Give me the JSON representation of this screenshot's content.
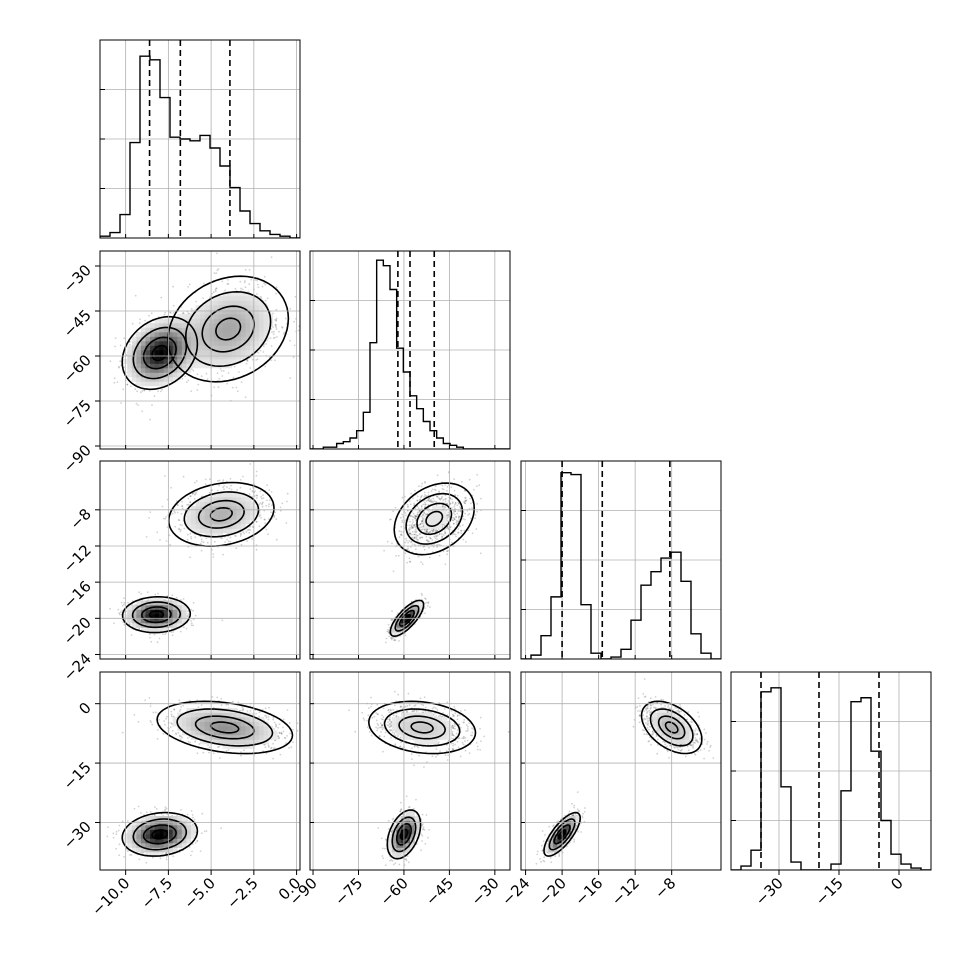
{
  "chart_data": {
    "type": "corner",
    "grid": true,
    "params": [
      {
        "range": [
          -11.5,
          0.2
        ],
        "ticks": [
          -10.0,
          -7.5,
          -5.0,
          -2.5,
          0.0
        ],
        "tick_labels": [
          "−10.0",
          "−7.5",
          "−5.0",
          "−2.5",
          "0.0"
        ],
        "quantiles": [
          -8.6,
          -6.8,
          -3.9
        ],
        "hist_edges": [
          -11.5,
          -10.915,
          -10.33,
          -9.745,
          -9.16,
          -8.575,
          -7.99,
          -7.405,
          -6.82,
          -6.235,
          -5.65,
          -5.065,
          -4.48,
          -3.895,
          -3.31,
          -2.725,
          -2.14,
          -1.555,
          -0.97,
          -0.385,
          0.2
        ],
        "hist_counts": [
          1,
          3,
          13,
          53,
          101,
          99,
          78,
          56,
          55,
          54,
          57,
          50,
          40,
          28,
          15,
          8,
          4,
          2,
          1,
          0
        ],
        "hist_max": 110
      },
      {
        "range": [
          -91,
          -25
        ],
        "ticks": [
          -90,
          -75,
          -60,
          -45,
          -30
        ],
        "tick_labels": [
          "−90",
          "−75",
          "−60",
          "−45",
          "−30"
        ],
        "quantiles": [
          -62,
          -58,
          -50
        ],
        "hist_edges": [
          -91,
          -88.8,
          -86.6,
          -84.4,
          -82.2,
          -80,
          -77.8,
          -75.6,
          -73.4,
          -71.2,
          -69,
          -66.8,
          -64.6,
          -62.4,
          -60.2,
          -58,
          -55.8,
          -53.6,
          -51.4,
          -49.2,
          -47,
          -44.8,
          -42.6,
          -40.4,
          -38.2,
          -36,
          -33.8,
          -31.6,
          -29.4,
          -27.2,
          -25
        ],
        "hist_counts": [
          0,
          0,
          1,
          1,
          3,
          4,
          6,
          10,
          20,
          58,
          103,
          100,
          87,
          55,
          42,
          29,
          22,
          15,
          10,
          6,
          3,
          2,
          1,
          0,
          0,
          0,
          0,
          0,
          0,
          0
        ],
        "hist_max": 108
      },
      {
        "range": [
          -24.5,
          -2.6
        ],
        "ticks": [
          -24,
          -20,
          -16,
          -12,
          -8
        ],
        "tick_labels": [
          "−24",
          "−20",
          "−16",
          "−12",
          "−8"
        ],
        "quantiles": [
          -20.0,
          -15.6,
          -8.2
        ],
        "hist_edges": [
          -24.5,
          -23.405,
          -22.31,
          -21.215,
          -20.12,
          -19.025,
          -17.93,
          -16.835,
          -15.74,
          -14.645,
          -13.55,
          -12.455,
          -11.36,
          -10.265,
          -9.17,
          -8.075,
          -6.98,
          -5.885,
          -4.79,
          -3.695,
          -2.6
        ],
        "hist_counts": [
          0,
          2,
          12,
          32,
          96,
          95,
          28,
          3,
          0,
          1,
          5,
          20,
          38,
          45,
          52,
          55,
          40,
          13,
          3,
          0
        ],
        "hist_max": 102
      },
      {
        "range": [
          -42,
          8
        ],
        "ticks": [
          -30,
          -15,
          0
        ],
        "tick_labels": [
          "−30",
          "−15",
          "0"
        ],
        "quantiles": [
          -34.5,
          -20.0,
          -5.0
        ],
        "hist_edges": [
          -42,
          -39.5,
          -37,
          -34.5,
          -32,
          -29.5,
          -27,
          -24.5,
          -22,
          -19.5,
          -17,
          -14.5,
          -12,
          -9.5,
          -7,
          -4.5,
          -2,
          0.5,
          3,
          5.5,
          8
        ],
        "hist_counts": [
          0,
          2,
          10,
          90,
          92,
          42,
          4,
          0,
          0,
          0,
          3,
          40,
          85,
          87,
          60,
          25,
          8,
          3,
          1,
          0
        ],
        "hist_max": 100
      }
    ],
    "pairs": [
      {
        "row": 1,
        "col": 0,
        "modes": [
          {
            "mean": [
              -8.0,
              -59
            ],
            "sd": [
              1.0,
              5.5
            ],
            "rho": 0.25,
            "n": 1600
          },
          {
            "mean": [
              -4.0,
              -51
            ],
            "sd": [
              1.6,
              8.0
            ],
            "rho": 0.2,
            "n": 1600
          }
        ]
      },
      {
        "row": 2,
        "col": 0,
        "modes": [
          {
            "mean": [
              -8.2,
              -19.6
            ],
            "sd": [
              0.9,
              0.9
            ],
            "rho": 0.05,
            "n": 1500
          },
          {
            "mean": [
              -4.4,
              -8.5
            ],
            "sd": [
              1.4,
              1.6
            ],
            "rho": 0.2,
            "n": 1500
          }
        ]
      },
      {
        "row": 2,
        "col": 1,
        "modes": [
          {
            "mean": [
              -59,
              -20.0
            ],
            "sd": [
              2.5,
              0.9
            ],
            "rho": 0.75,
            "n": 1500
          },
          {
            "mean": [
              -50,
              -9.0
            ],
            "sd": [
              6.0,
              1.8
            ],
            "rho": 0.3,
            "n": 1500
          }
        ]
      },
      {
        "row": 3,
        "col": 0,
        "modes": [
          {
            "mean": [
              -8.0,
              -33
            ],
            "sd": [
              1.0,
              2.5
            ],
            "rho": 0.15,
            "n": 1500
          },
          {
            "mean": [
              -4.2,
              -6
            ],
            "sd": [
              1.8,
              3.0
            ],
            "rho": -0.3,
            "n": 1500
          }
        ]
      },
      {
        "row": 3,
        "col": 1,
        "modes": [
          {
            "mean": [
              -60,
              -33
            ],
            "sd": [
              2.5,
              2.8
            ],
            "rho": 0.4,
            "n": 1500
          },
          {
            "mean": [
              -54,
              -6
            ],
            "sd": [
              8.0,
              3.0
            ],
            "rho": -0.2,
            "n": 1500
          }
        ]
      },
      {
        "row": 3,
        "col": 2,
        "modes": [
          {
            "mean": [
              -20,
              -33
            ],
            "sd": [
              0.9,
              2.5
            ],
            "rho": 0.75,
            "n": 1500
          },
          {
            "mean": [
              -8.0,
              -6
            ],
            "sd": [
              1.5,
              3.0
            ],
            "rho": -0.45,
            "n": 1500
          }
        ]
      }
    ]
  }
}
